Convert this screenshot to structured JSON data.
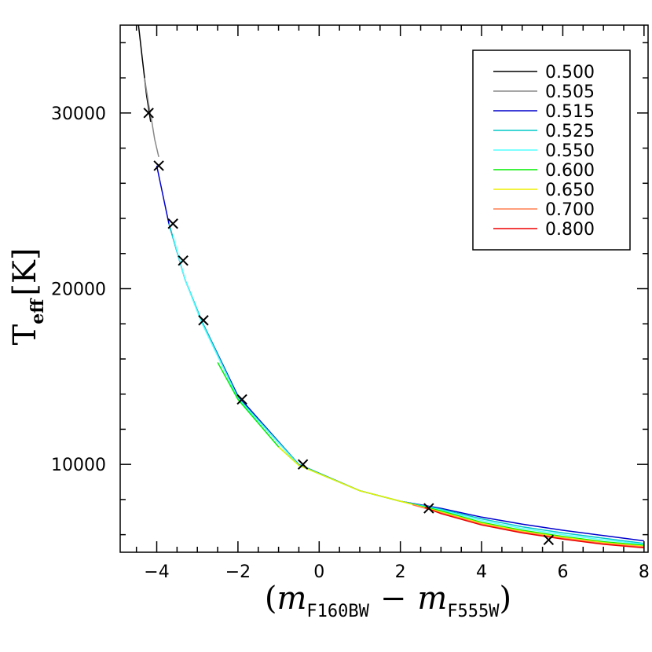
{
  "chart_data": {
    "type": "line",
    "xlabel": "(m F160BW − m F555W)",
    "ylabel": "T eff [K]",
    "xlabel_parts": {
      "open": "(",
      "m1": "m",
      "sub1": "F160BW",
      "minus": "−",
      "m2": "m",
      "sub2": "F555W",
      "close": ")"
    },
    "ylabel_parts": {
      "T": "T",
      "sub": "eff",
      "unit": "[K]"
    },
    "xlim": [
      -4.9,
      8.1
    ],
    "ylim": [
      5000,
      35000
    ],
    "x_ticks": [
      -4,
      -2,
      0,
      2,
      4,
      6,
      8
    ],
    "x_tick_labels": [
      "−4",
      "−2",
      "0",
      "2",
      "4",
      "6",
      "8"
    ],
    "y_ticks": [
      10000,
      20000,
      30000
    ],
    "y_tick_labels": [
      "10000",
      "20000",
      "30000"
    ],
    "grid": false,
    "legend_position": "top-right",
    "series": [
      {
        "name": "0.500",
        "color": "#000000",
        "x": [
          -4.45,
          -4.35,
          -4.25,
          -4.15
        ],
        "y": [
          35000,
          33000,
          31000,
          29500
        ]
      },
      {
        "name": "0.505",
        "color": "#888888",
        "x": [
          -4.3,
          -4.2,
          -4.12,
          -4.05,
          -3.95
        ],
        "y": [
          32000,
          30500,
          29500,
          28500,
          27500
        ]
      },
      {
        "name": "0.515",
        "color": "#0000cc",
        "x": [
          -4.0,
          -3.7,
          -3.3,
          -2.9,
          -2.0,
          -0.5,
          1.0,
          2.0,
          3.0,
          4.0,
          5.0,
          6.0,
          7.0,
          8.0
        ],
        "y": [
          27000,
          23700,
          20500,
          18200,
          13900,
          10000,
          8500,
          7900,
          7500,
          7000,
          6600,
          6250,
          5950,
          5650
        ]
      },
      {
        "name": "0.525",
        "color": "#00c8c8",
        "x": [
          -3.7,
          -3.3,
          -2.9,
          -2.0,
          -0.5,
          1.0,
          2.0,
          3.0,
          4.0,
          5.0,
          6.0,
          7.0,
          8.0
        ],
        "y": [
          23700,
          20500,
          18200,
          13800,
          10000,
          8500,
          7900,
          7450,
          6900,
          6450,
          6100,
          5800,
          5500
        ]
      },
      {
        "name": "0.550",
        "color": "#55ffff",
        "x": [
          -3.6,
          -3.3,
          -2.9,
          -2.0,
          -0.5,
          1.0,
          2.0,
          3.0,
          4.0,
          5.0,
          6.0,
          7.0,
          8.0
        ],
        "y": [
          23000,
          20500,
          18100,
          13750,
          9950,
          8500,
          7900,
          7400,
          6800,
          6350,
          6000,
          5700,
          5450
        ]
      },
      {
        "name": "0.600",
        "color": "#00ee00",
        "x": [
          -2.5,
          -2.0,
          -1.0,
          -0.5,
          1.0,
          2.0,
          3.0,
          4.0,
          5.0,
          6.0,
          7.0,
          8.0
        ],
        "y": [
          15800,
          13700,
          11000,
          9950,
          8500,
          7900,
          7350,
          6700,
          6250,
          5900,
          5600,
          5400
        ]
      },
      {
        "name": "0.650",
        "color": "#eeee00",
        "x": [
          -1.0,
          -0.5,
          1.0,
          2.0,
          3.0,
          4.0,
          5.0,
          6.0,
          7.0,
          8.0
        ],
        "y": [
          11000,
          9950,
          8500,
          7900,
          7300,
          6650,
          6200,
          5850,
          5550,
          5350
        ]
      },
      {
        "name": "0.700",
        "color": "#ff7f50",
        "x": [
          2.3,
          3.0,
          4.0,
          5.0,
          6.0,
          7.0,
          8.0
        ],
        "y": [
          7700,
          7250,
          6600,
          6150,
          5800,
          5500,
          5300
        ]
      },
      {
        "name": "0.800",
        "color": "#ee0000",
        "x": [
          2.6,
          3.0,
          4.0,
          5.0,
          6.0,
          7.0,
          8.0
        ],
        "y": [
          7550,
          7200,
          6550,
          6100,
          5750,
          5450,
          5250
        ]
      }
    ],
    "markers": {
      "symbol": "x",
      "x": [
        -4.2,
        -3.95,
        -3.6,
        -3.35,
        -2.85,
        -1.9,
        -0.4,
        2.7,
        5.65
      ],
      "y": [
        30000,
        27000,
        23700,
        21600,
        18200,
        13700,
        10000,
        7500,
        5700
      ]
    }
  }
}
